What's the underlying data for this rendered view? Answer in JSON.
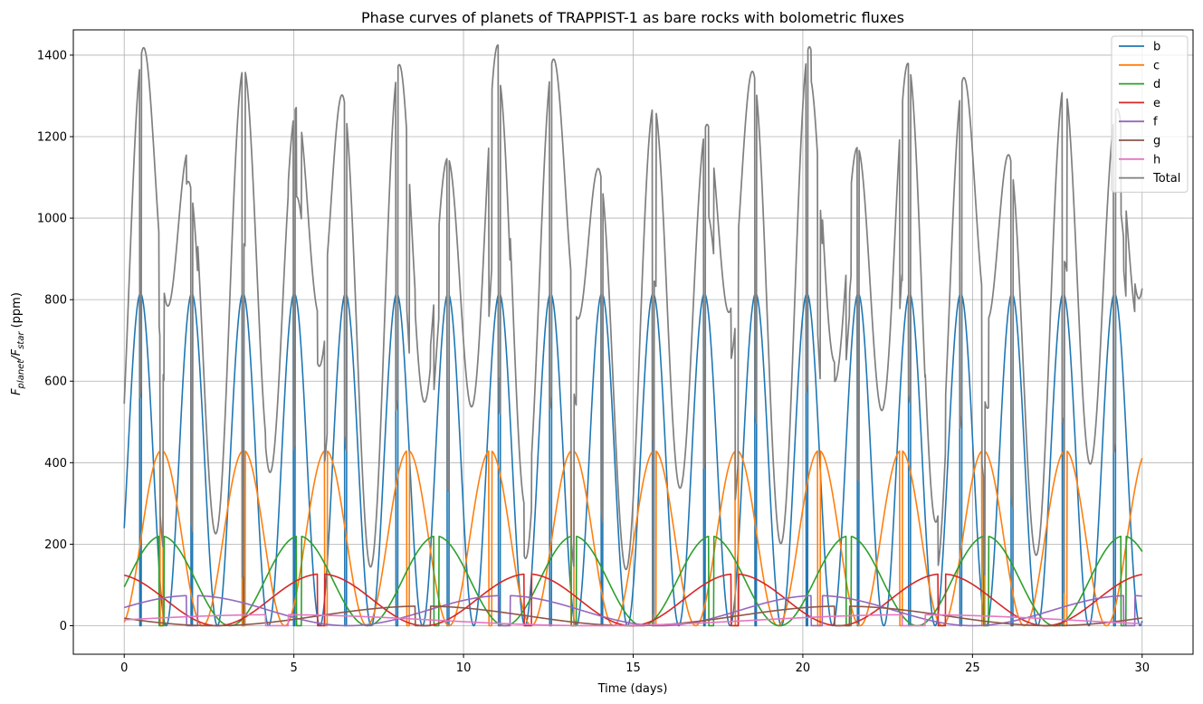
{
  "chart_data": {
    "type": "line",
    "title": "Phase curves of planets of TRAPPIST-1 as bare rocks with bolometric fluxes",
    "xlabel": "Time (days)",
    "ylabel_main": "F",
    "ylabel_sub1": "planet",
    "ylabel_mid": "/F",
    "ylabel_sub2": "star",
    "ylabel_unit": " (ppm)",
    "xlim": [
      -1.5,
      31.5
    ],
    "ylim": [
      -70,
      1462
    ],
    "xticks": [
      0,
      5,
      10,
      15,
      20,
      25,
      30
    ],
    "yticks": [
      0,
      200,
      400,
      600,
      800,
      1000,
      1200,
      1400
    ],
    "grid": true,
    "legend_position": "top-right",
    "time_range": [
      0,
      30
    ],
    "series": [
      {
        "name": "b",
        "color": "#1f77b4",
        "period": 1.51087,
        "peak": 815,
        "peak_time": 0.48
      },
      {
        "name": "c",
        "color": "#ff7f0e",
        "period": 2.42182,
        "peak": 430,
        "peak_time": 1.1
      },
      {
        "name": "d",
        "color": "#2ca02c",
        "period": 4.04961,
        "peak": 220,
        "peak_time": 1.1
      },
      {
        "name": "e",
        "color": "#d62728",
        "period": 6.09961,
        "peak": 127,
        "peak_time": 5.8
      },
      {
        "name": "f",
        "color": "#9467bd",
        "period": 9.20669,
        "peak": 74,
        "peak_time": 2.0
      },
      {
        "name": "g",
        "color": "#8c564b",
        "period": 12.35294,
        "peak": 48,
        "peak_time": 8.8
      },
      {
        "name": "h",
        "color": "#e377c2",
        "period": 18.76712,
        "peak": 27,
        "peak_time": 4.5
      },
      {
        "name": "Total",
        "color": "#7f7f7f"
      }
    ]
  }
}
